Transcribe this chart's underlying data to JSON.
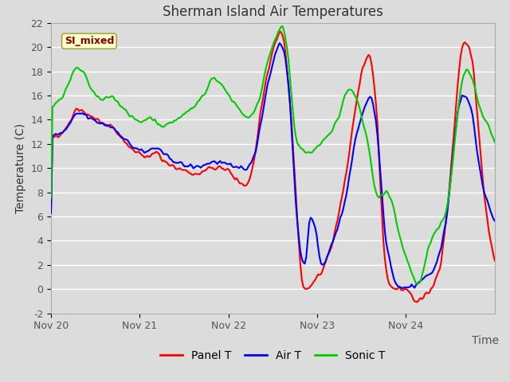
{
  "title": "Sherman Island Air Temperatures",
  "ylabel": "Temperature (C)",
  "xlabel": "Time",
  "annotation": "SI_mixed",
  "annotation_color": "#8B0000",
  "annotation_bg": "#FFFFCC",
  "annotation_border": "#999933",
  "legend_labels": [
    "Panel T",
    "Air T",
    "Sonic T"
  ],
  "line_colors": [
    "#FF0000",
    "#0000FF",
    "#00CC00"
  ],
  "ylim": [
    -2,
    22
  ],
  "yticks": [
    -2,
    0,
    2,
    4,
    6,
    8,
    10,
    12,
    14,
    16,
    18,
    20,
    22
  ],
  "xtick_positions": [
    0,
    1,
    2,
    3,
    4
  ],
  "xtick_labels": [
    "Nov 20",
    "Nov 21",
    "Nov 22",
    "Nov 23",
    "Nov 24"
  ],
  "xlim": [
    0,
    5
  ],
  "bg_color": "#DCDCDC",
  "grid_color": "#FFFFFF",
  "title_fontsize": 12,
  "axis_fontsize": 10,
  "tick_fontsize": 9,
  "legend_fontsize": 10,
  "line_width": 1.5,
  "tick_color": "#555555"
}
